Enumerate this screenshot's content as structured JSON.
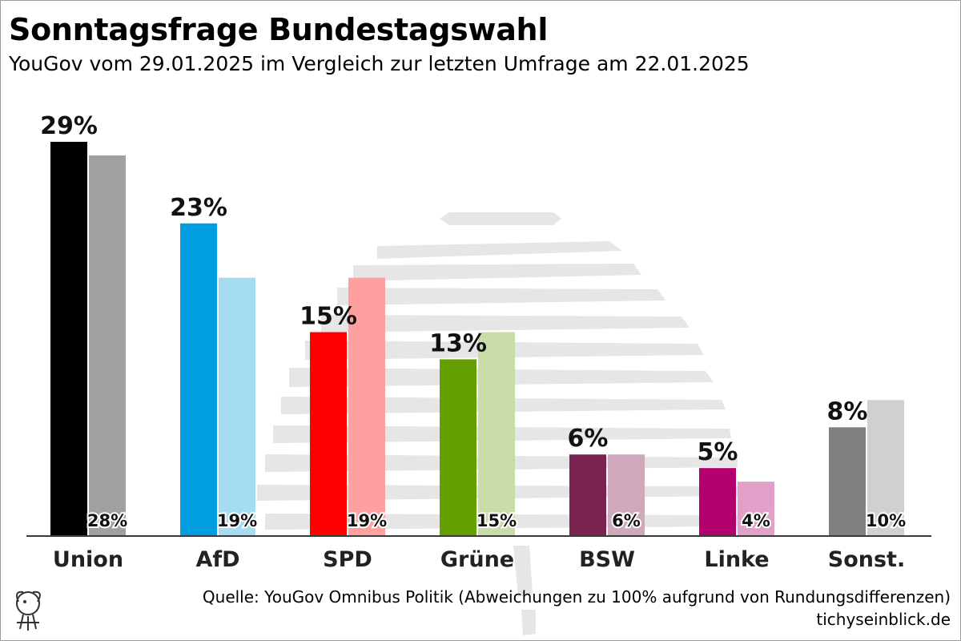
{
  "header": {
    "title": "Sonntagsfrage Bundestagswahl",
    "subtitle": "YouGov vom 29.01.2025 im Vergleich zur letzten Umfrage am 22.01.2025"
  },
  "footer": {
    "source": "Quelle: YouGov Omnibus Politik (Abweichungen zu 100% aufgrund von Rundungsdifferenzen)",
    "site": "tichyseinblick.de"
  },
  "chart_data": {
    "type": "bar",
    "title": "Sonntagsfrage Bundestagswahl",
    "subtitle": "YouGov vom 29.01.2025 im Vergleich zur letzten Umfrage am 22.01.2025",
    "categories": [
      "Union",
      "AfD",
      "SPD",
      "Grüne",
      "BSW",
      "Linke",
      "Sonst."
    ],
    "series": [
      {
        "values": [
          29,
          23,
          15,
          13,
          6,
          5,
          8
        ],
        "colors": [
          "#000000",
          "#009ee0",
          "#ff0000",
          "#64a000",
          "#7a2350",
          "#b4006c",
          "#808080"
        ]
      },
      {
        "values": [
          28,
          19,
          19,
          15,
          6,
          4,
          10
        ],
        "colors": [
          "#a0a0a0",
          "#a6dcf2",
          "#ffa0a0",
          "#c8dca8",
          "#d0a8bc",
          "#e0a0c8",
          "#d0d0d0"
        ]
      }
    ],
    "value_suffix": "%",
    "ylim": [
      0,
      30
    ],
    "grid": false,
    "legend": "none"
  }
}
